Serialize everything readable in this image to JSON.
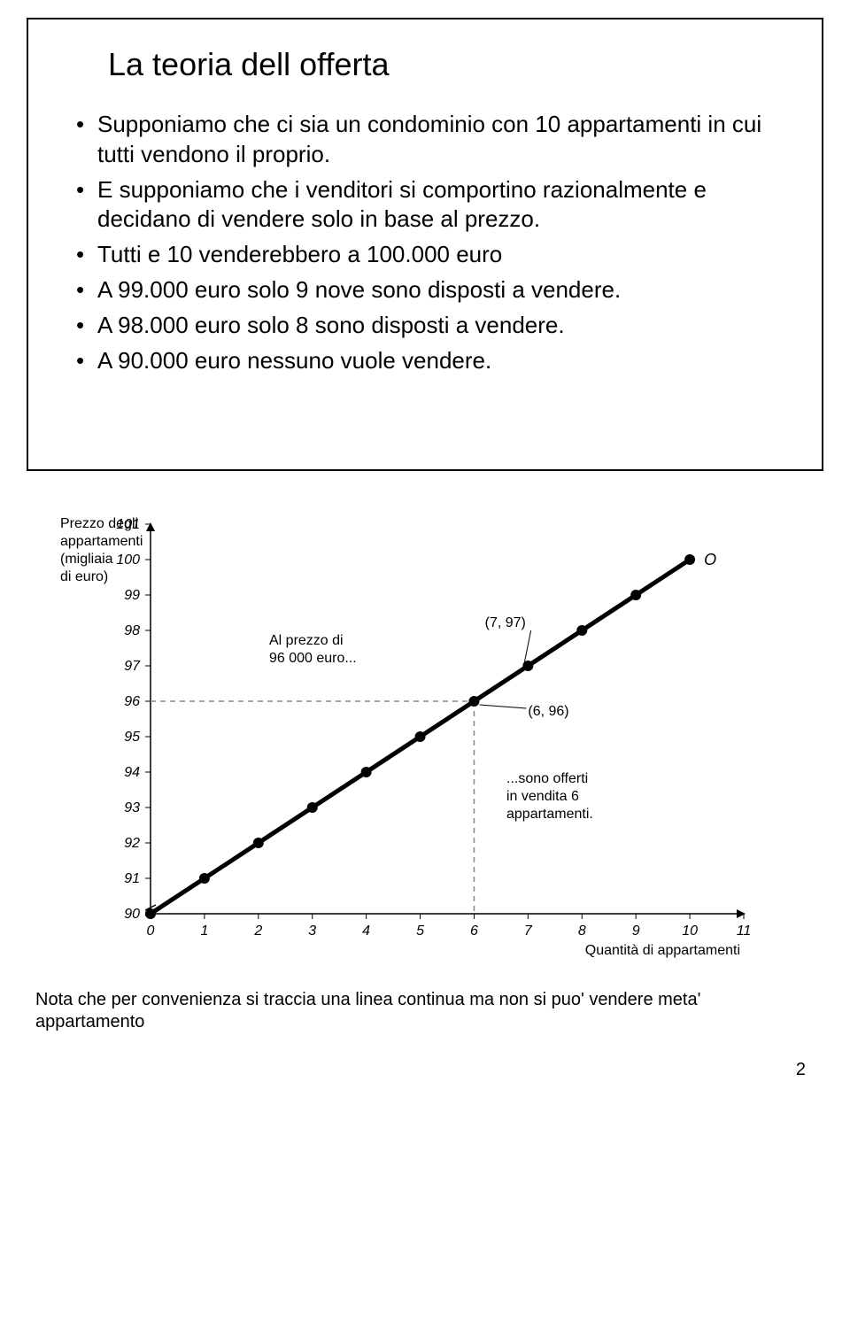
{
  "slide": {
    "title": "La teoria dell offerta",
    "bullets": [
      "Supponiamo che ci sia un condominio con 10 appartamenti  in cui tutti vendono il proprio.",
      "E supponiamo che i venditori si comportino razionalmente e decidano di vendere solo in base al prezzo.",
      "Tutti e 10 venderebbero a 100.000 euro",
      "A 99.000 euro solo 9 nove sono disposti a vendere.",
      "A 98.000 euro solo 8 sono disposti a vendere.",
      "A 90.000 euro nessuno vuole vendere."
    ]
  },
  "chart": {
    "type": "line-scatter",
    "y_axis_label_lines": [
      "Prezzo degli",
      "appartamenti",
      "(migliaia",
      "di euro)"
    ],
    "x_axis_label": "Quantità di appartamenti",
    "x_ticks": [
      0,
      1,
      2,
      3,
      4,
      5,
      6,
      7,
      8,
      9,
      10,
      11
    ],
    "y_ticks": [
      90,
      91,
      92,
      93,
      94,
      95,
      96,
      97,
      98,
      99,
      100,
      101
    ],
    "xlim": [
      0,
      11
    ],
    "ylim": [
      90,
      101
    ],
    "points": [
      {
        "x": 0,
        "y": 90
      },
      {
        "x": 1,
        "y": 91
      },
      {
        "x": 2,
        "y": 92
      },
      {
        "x": 3,
        "y": 93
      },
      {
        "x": 4,
        "y": 94
      },
      {
        "x": 5,
        "y": 95
      },
      {
        "x": 6,
        "y": 96
      },
      {
        "x": 7,
        "y": 97
      },
      {
        "x": 8,
        "y": 98
      },
      {
        "x": 9,
        "y": 99
      },
      {
        "x": 10,
        "y": 100
      }
    ],
    "end_label": "O",
    "line_color": "#000000",
    "line_width": 5,
    "marker_color": "#000000",
    "marker_radius": 6,
    "dash_color": "#888888",
    "dash_pattern": "6,5",
    "background_color": "#ffffff",
    "axis_color": "#000000",
    "tick_fontsize": 16,
    "label_fontsize": 16,
    "axis_label_fontsize": 16,
    "annotation_left_lines": [
      "Al prezzo di",
      "96 000 euro..."
    ],
    "annotation_left_x": 2.2,
    "annotation_left_y": 97.6,
    "point_label_1": "(7, 97)",
    "point_label_1_x": 6.2,
    "point_label_1_y": 98.1,
    "point_label_2": "(6, 96)",
    "point_label_2_x": 7.0,
    "point_label_2_y": 95.6,
    "annotation_right_lines": [
      "...sono offerti",
      "in vendita 6",
      "appartamenti."
    ],
    "annotation_right_x": 6.6,
    "annotation_right_y": 93.7,
    "guide_x": 6,
    "guide_y": 96
  },
  "footnote": "Nota che per convenienza si traccia una linea continua ma non si puo' vendere meta' appartamento",
  "page_number": "2"
}
